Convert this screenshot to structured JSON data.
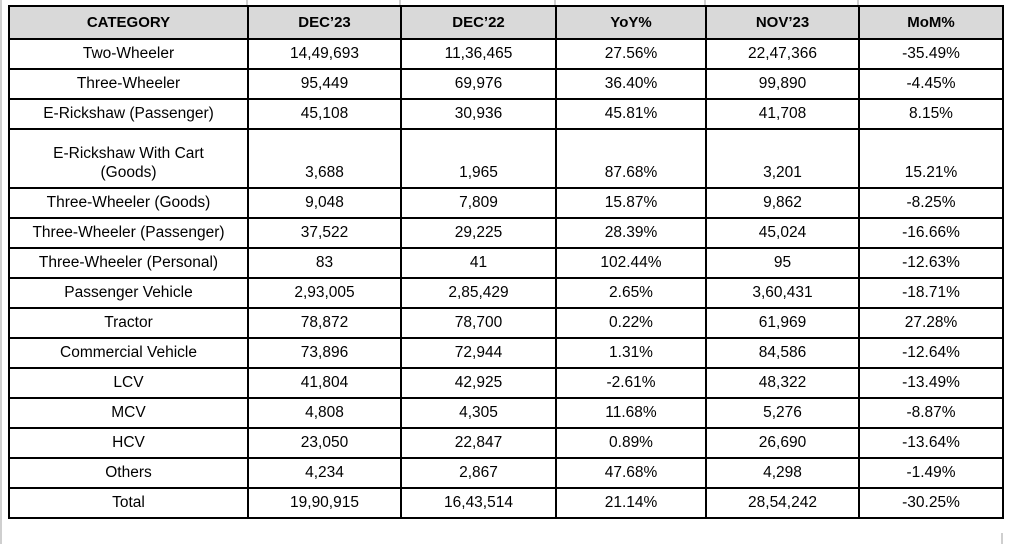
{
  "table": {
    "columns": [
      "CATEGORY",
      "DEC’23",
      "DEC’22",
      "YoY%",
      "NOV’23",
      "MoM%"
    ],
    "rows": [
      {
        "cells": [
          "Two-Wheeler",
          "14,49,693",
          "11,36,465",
          "27.56%",
          "22,47,366",
          "-35.49%"
        ],
        "tall": false
      },
      {
        "cells": [
          "Three-Wheeler",
          "95,449",
          "69,976",
          "36.40%",
          "99,890",
          "-4.45%"
        ],
        "tall": false
      },
      {
        "cells": [
          "E-Rickshaw (Passenger)",
          "45,108",
          "30,936",
          "45.81%",
          "41,708",
          "8.15%"
        ],
        "tall": false
      },
      {
        "cells": [
          "E-Rickshaw With Cart\n(Goods)",
          "3,688",
          "1,965",
          "87.68%",
          "3,201",
          "15.21%"
        ],
        "tall": true
      },
      {
        "cells": [
          "Three-Wheeler (Goods)",
          "9,048",
          "7,809",
          "15.87%",
          "9,862",
          "-8.25%"
        ],
        "tall": false
      },
      {
        "cells": [
          "Three-Wheeler (Passenger)",
          "37,522",
          "29,225",
          "28.39%",
          "45,024",
          "-16.66%"
        ],
        "tall": false
      },
      {
        "cells": [
          "Three-Wheeler (Personal)",
          "83",
          "41",
          "102.44%",
          "95",
          "-12.63%"
        ],
        "tall": false
      },
      {
        "cells": [
          "Passenger Vehicle",
          "2,93,005",
          "2,85,429",
          "2.65%",
          "3,60,431",
          "-18.71%"
        ],
        "tall": false
      },
      {
        "cells": [
          "Tractor",
          "78,872",
          "78,700",
          "0.22%",
          "61,969",
          "27.28%"
        ],
        "tall": false
      },
      {
        "cells": [
          "Commercial Vehicle",
          "73,896",
          "72,944",
          "1.31%",
          "84,586",
          "-12.64%"
        ],
        "tall": false
      },
      {
        "cells": [
          "LCV",
          "41,804",
          "42,925",
          "-2.61%",
          "48,322",
          "-13.49%"
        ],
        "tall": false
      },
      {
        "cells": [
          "MCV",
          "4,808",
          "4,305",
          "11.68%",
          "5,276",
          "-8.87%"
        ],
        "tall": false
      },
      {
        "cells": [
          "HCV",
          "23,050",
          "22,847",
          "0.89%",
          "26,690",
          "-13.64%"
        ],
        "tall": false
      },
      {
        "cells": [
          "Others",
          "4,234",
          "2,867",
          "47.68%",
          "4,298",
          "-1.49%"
        ],
        "tall": false
      },
      {
        "cells": [
          "Total",
          "19,90,915",
          "16,43,514",
          "21.14%",
          "28,54,242",
          "-30.25%"
        ],
        "tall": false
      }
    ]
  },
  "colors": {
    "header_bg": "#d9d9d9",
    "border": "#000000",
    "gridline": "#cfcfcf",
    "text": "#000000"
  }
}
